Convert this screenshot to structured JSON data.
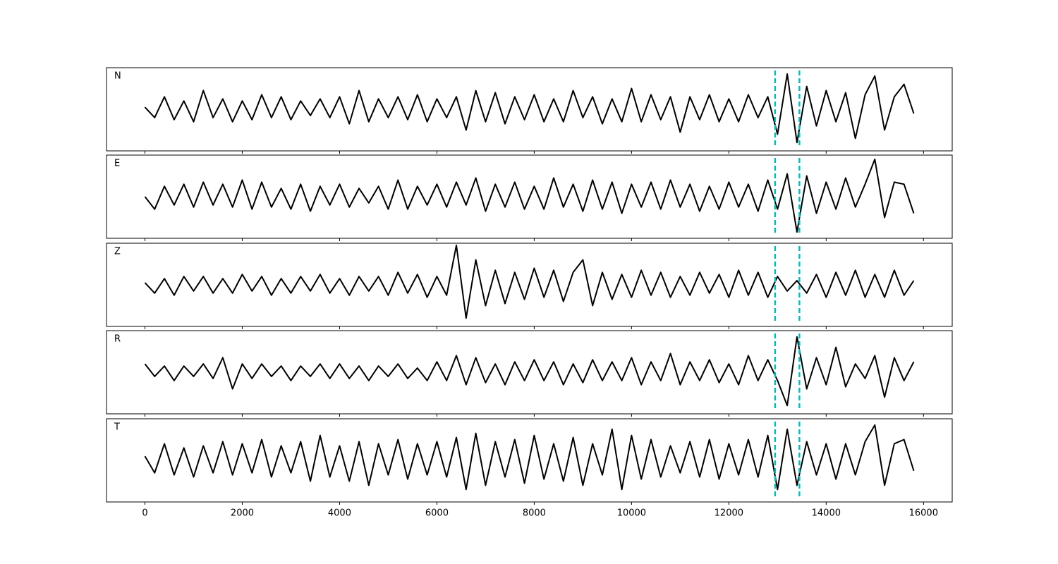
{
  "chart_data": [
    {
      "type": "line",
      "label": "N",
      "color": "#000000",
      "vlines": [
        12950,
        13450
      ],
      "vline_color": "#00bfbf",
      "xlim": [
        -790,
        16590
      ],
      "xticks": [
        0,
        2000,
        4000,
        6000,
        8000,
        10000,
        12000,
        14000,
        16000
      ],
      "ylim": [
        -1,
        1
      ],
      "x": [
        0,
        200,
        400,
        600,
        800,
        1000,
        1200,
        1400,
        1600,
        1800,
        2000,
        2200,
        2400,
        2600,
        2800,
        3000,
        3200,
        3400,
        3600,
        3800,
        4000,
        4200,
        4400,
        4600,
        4800,
        5000,
        5200,
        5400,
        5600,
        5800,
        6000,
        6200,
        6400,
        6600,
        6800,
        7000,
        7200,
        7400,
        7600,
        7800,
        8000,
        8200,
        8400,
        8600,
        8800,
        9000,
        9200,
        9400,
        9600,
        9800,
        10000,
        10200,
        10400,
        10600,
        10800,
        11000,
        11200,
        11400,
        11600,
        11800,
        12000,
        12200,
        12400,
        12600,
        12800,
        13000,
        13200,
        13400,
        13600,
        13800,
        14000,
        14200,
        14400,
        14600,
        14800,
        15000,
        15200,
        15400,
        15600,
        15800
      ],
      "values": [
        0.05,
        -0.2,
        0.3,
        -0.25,
        0.2,
        -0.3,
        0.45,
        -0.2,
        0.25,
        -0.3,
        0.2,
        -0.25,
        0.35,
        -0.2,
        0.3,
        -0.25,
        0.2,
        -0.15,
        0.25,
        -0.2,
        0.3,
        -0.35,
        0.45,
        -0.3,
        0.25,
        -0.2,
        0.3,
        -0.25,
        0.35,
        -0.3,
        0.25,
        -0.2,
        0.3,
        -0.5,
        0.45,
        -0.3,
        0.4,
        -0.35,
        0.3,
        -0.25,
        0.35,
        -0.3,
        0.25,
        -0.3,
        0.45,
        -0.2,
        0.3,
        -0.35,
        0.25,
        -0.3,
        0.5,
        -0.3,
        0.35,
        -0.25,
        0.3,
        -0.55,
        0.3,
        -0.25,
        0.35,
        -0.3,
        0.25,
        -0.3,
        0.35,
        -0.2,
        0.3,
        -0.6,
        0.85,
        -0.8,
        0.55,
        -0.4,
        0.45,
        -0.3,
        0.4,
        -0.7,
        0.35,
        0.8,
        -0.5,
        0.3,
        0.6,
        -0.1
      ]
    },
    {
      "type": "line",
      "label": "E",
      "color": "#000000",
      "vlines": [
        12950,
        13450
      ],
      "vline_color": "#00bfbf",
      "xlim": [
        -790,
        16590
      ],
      "xticks": [
        0,
        2000,
        4000,
        6000,
        8000,
        10000,
        12000,
        14000,
        16000
      ],
      "ylim": [
        -1,
        1
      ],
      "x": [
        0,
        200,
        400,
        600,
        800,
        1000,
        1200,
        1400,
        1600,
        1800,
        2000,
        2200,
        2400,
        2600,
        2800,
        3000,
        3200,
        3400,
        3600,
        3800,
        4000,
        4200,
        4400,
        4600,
        4800,
        5000,
        5200,
        5400,
        5600,
        5800,
        6000,
        6200,
        6400,
        6600,
        6800,
        7000,
        7200,
        7400,
        7600,
        7800,
        8000,
        8200,
        8400,
        8600,
        8800,
        9000,
        9200,
        9400,
        9600,
        9800,
        10000,
        10200,
        10400,
        10600,
        10800,
        11000,
        11200,
        11400,
        11600,
        11800,
        12000,
        12200,
        12400,
        12600,
        12800,
        13000,
        13200,
        13400,
        13600,
        13800,
        14000,
        14200,
        14400,
        14600,
        14800,
        15000,
        15200,
        15400,
        15600,
        15800
      ],
      "values": [
        0.0,
        -0.3,
        0.25,
        -0.2,
        0.3,
        -0.25,
        0.35,
        -0.2,
        0.3,
        -0.25,
        0.4,
        -0.3,
        0.35,
        -0.25,
        0.2,
        -0.3,
        0.3,
        -0.35,
        0.25,
        -0.2,
        0.3,
        -0.25,
        0.2,
        -0.15,
        0.25,
        -0.3,
        0.4,
        -0.3,
        0.25,
        -0.2,
        0.3,
        -0.25,
        0.35,
        -0.2,
        0.45,
        -0.35,
        0.3,
        -0.25,
        0.35,
        -0.3,
        0.25,
        -0.3,
        0.45,
        -0.25,
        0.3,
        -0.35,
        0.4,
        -0.3,
        0.35,
        -0.4,
        0.3,
        -0.25,
        0.35,
        -0.3,
        0.4,
        -0.25,
        0.3,
        -0.35,
        0.25,
        -0.3,
        0.35,
        -0.25,
        0.3,
        -0.35,
        0.4,
        -0.3,
        0.55,
        -0.85,
        0.5,
        -0.4,
        0.35,
        -0.3,
        0.45,
        -0.25,
        0.3,
        0.9,
        -0.5,
        0.35,
        0.3,
        -0.4
      ]
    },
    {
      "type": "line",
      "label": "Z",
      "color": "#000000",
      "vlines": [
        12950,
        13450
      ],
      "vline_color": "#00bfbf",
      "xlim": [
        -790,
        16590
      ],
      "xticks": [
        0,
        2000,
        4000,
        6000,
        8000,
        10000,
        12000,
        14000,
        16000
      ],
      "ylim": [
        -1,
        1
      ],
      "x": [
        0,
        200,
        400,
        600,
        800,
        1000,
        1200,
        1400,
        1600,
        1800,
        2000,
        2200,
        2400,
        2600,
        2800,
        3000,
        3200,
        3400,
        3600,
        3800,
        4000,
        4200,
        4400,
        4600,
        4800,
        5000,
        5200,
        5400,
        5600,
        5800,
        6000,
        6200,
        6400,
        6600,
        6800,
        7000,
        7200,
        7400,
        7600,
        7800,
        8000,
        8200,
        8400,
        8600,
        8800,
        9000,
        9200,
        9400,
        9600,
        9800,
        10000,
        10200,
        10400,
        10600,
        10800,
        11000,
        11200,
        11400,
        11600,
        11800,
        12000,
        12200,
        12400,
        12600,
        12800,
        13000,
        13200,
        13400,
        13600,
        13800,
        14000,
        14200,
        14400,
        14600,
        14800,
        15000,
        15200,
        15400,
        15600,
        15800
      ],
      "values": [
        0.05,
        -0.2,
        0.15,
        -0.25,
        0.2,
        -0.15,
        0.2,
        -0.2,
        0.15,
        -0.2,
        0.25,
        -0.15,
        0.2,
        -0.25,
        0.15,
        -0.2,
        0.2,
        -0.15,
        0.25,
        -0.2,
        0.15,
        -0.25,
        0.2,
        -0.15,
        0.2,
        -0.25,
        0.3,
        -0.2,
        0.25,
        -0.3,
        0.2,
        -0.25,
        0.95,
        -0.8,
        0.6,
        -0.5,
        0.35,
        -0.45,
        0.3,
        -0.35,
        0.4,
        -0.3,
        0.35,
        -0.4,
        0.3,
        0.6,
        -0.5,
        0.3,
        -0.35,
        0.25,
        -0.3,
        0.35,
        -0.25,
        0.3,
        -0.3,
        0.2,
        -0.25,
        0.3,
        -0.2,
        0.25,
        -0.3,
        0.35,
        -0.25,
        0.3,
        -0.3,
        0.2,
        -0.15,
        0.1,
        -0.2,
        0.25,
        -0.3,
        0.3,
        -0.25,
        0.35,
        -0.3,
        0.25,
        -0.3,
        0.35,
        -0.25,
        0.1
      ]
    },
    {
      "type": "line",
      "label": "R",
      "color": "#000000",
      "vlines": [
        12950,
        13450
      ],
      "vline_color": "#00bfbf",
      "xlim": [
        -790,
        16590
      ],
      "xticks": [
        0,
        2000,
        4000,
        6000,
        8000,
        10000,
        12000,
        14000,
        16000
      ],
      "ylim": [
        -1,
        1
      ],
      "x": [
        0,
        200,
        400,
        600,
        800,
        1000,
        1200,
        1400,
        1600,
        1800,
        2000,
        2200,
        2400,
        2600,
        2800,
        3000,
        3200,
        3400,
        3600,
        3800,
        4000,
        4200,
        4400,
        4600,
        4800,
        5000,
        5200,
        5400,
        5600,
        5800,
        6000,
        6200,
        6400,
        6600,
        6800,
        7000,
        7200,
        7400,
        7600,
        7800,
        8000,
        8200,
        8400,
        8600,
        8800,
        9000,
        9200,
        9400,
        9600,
        9800,
        10000,
        10200,
        10400,
        10600,
        10800,
        11000,
        11200,
        11400,
        11600,
        11800,
        12000,
        12200,
        12400,
        12600,
        12800,
        13000,
        13200,
        13400,
        13600,
        13800,
        14000,
        14200,
        14400,
        14600,
        14800,
        15000,
        15200,
        15400,
        15600,
        15800
      ],
      "values": [
        0.2,
        -0.1,
        0.15,
        -0.2,
        0.15,
        -0.1,
        0.2,
        -0.15,
        0.35,
        -0.4,
        0.2,
        -0.15,
        0.2,
        -0.1,
        0.15,
        -0.2,
        0.15,
        -0.1,
        0.2,
        -0.15,
        0.2,
        -0.15,
        0.15,
        -0.2,
        0.15,
        -0.1,
        0.2,
        -0.15,
        0.1,
        -0.2,
        0.25,
        -0.2,
        0.4,
        -0.3,
        0.35,
        -0.25,
        0.2,
        -0.3,
        0.25,
        -0.2,
        0.3,
        -0.2,
        0.25,
        -0.3,
        0.2,
        -0.25,
        0.3,
        -0.2,
        0.25,
        -0.2,
        0.35,
        -0.3,
        0.25,
        -0.2,
        0.45,
        -0.3,
        0.25,
        -0.2,
        0.3,
        -0.25,
        0.2,
        -0.3,
        0.4,
        -0.2,
        0.3,
        -0.2,
        -0.8,
        0.85,
        -0.4,
        0.35,
        -0.3,
        0.6,
        -0.35,
        0.2,
        -0.15,
        0.4,
        -0.6,
        0.35,
        -0.2,
        0.25
      ]
    },
    {
      "type": "line",
      "label": "T",
      "color": "#000000",
      "vlines": [
        12950,
        13450
      ],
      "vline_color": "#00bfbf",
      "xlim": [
        -790,
        16590
      ],
      "xticks": [
        0,
        2000,
        4000,
        6000,
        8000,
        10000,
        12000,
        14000,
        16000
      ],
      "ylim": [
        -1,
        1
      ],
      "x": [
        0,
        200,
        400,
        600,
        800,
        1000,
        1200,
        1400,
        1600,
        1800,
        2000,
        2200,
        2400,
        2600,
        2800,
        3000,
        3200,
        3400,
        3600,
        3800,
        4000,
        4200,
        4400,
        4600,
        4800,
        5000,
        5200,
        5400,
        5600,
        5800,
        6000,
        6200,
        6400,
        6600,
        6800,
        7000,
        7200,
        7400,
        7600,
        7800,
        8000,
        8200,
        8400,
        8600,
        8800,
        9000,
        9200,
        9400,
        9600,
        9800,
        10000,
        10200,
        10400,
        10600,
        10800,
        11000,
        11200,
        11400,
        11600,
        11800,
        12000,
        12200,
        12400,
        12600,
        12800,
        13000,
        13200,
        13400,
        13600,
        13800,
        14000,
        14200,
        14400,
        14600,
        14800,
        15000,
        15200,
        15400,
        15600,
        15800
      ],
      "values": [
        0.1,
        -0.3,
        0.4,
        -0.35,
        0.3,
        -0.4,
        0.35,
        -0.3,
        0.45,
        -0.35,
        0.4,
        -0.3,
        0.5,
        -0.4,
        0.35,
        -0.3,
        0.45,
        -0.5,
        0.6,
        -0.4,
        0.35,
        -0.5,
        0.45,
        -0.6,
        0.4,
        -0.35,
        0.5,
        -0.45,
        0.4,
        -0.35,
        0.45,
        -0.4,
        0.55,
        -0.7,
        0.65,
        -0.6,
        0.45,
        -0.4,
        0.5,
        -0.55,
        0.6,
        -0.45,
        0.4,
        -0.5,
        0.55,
        -0.6,
        0.4,
        -0.35,
        0.75,
        -0.7,
        0.6,
        -0.45,
        0.5,
        -0.4,
        0.35,
        -0.3,
        0.45,
        -0.4,
        0.5,
        -0.45,
        0.4,
        -0.35,
        0.5,
        -0.4,
        0.6,
        -0.7,
        0.75,
        -0.6,
        0.45,
        -0.35,
        0.4,
        -0.45,
        0.4,
        -0.35,
        0.45,
        0.85,
        -0.6,
        0.4,
        0.5,
        -0.25
      ]
    }
  ]
}
